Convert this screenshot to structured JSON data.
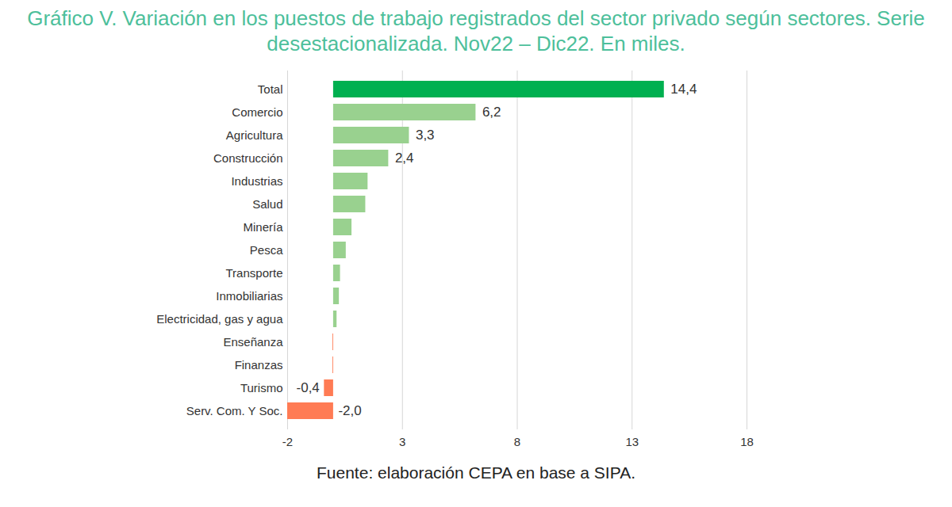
{
  "chart_data": {
    "type": "bar",
    "orientation": "horizontal",
    "title": "Gráfico V. Variación en los puestos de trabajo registrados del sector privado según sectores. Serie desestacionalizada. Nov22 – Dic22. En miles.",
    "caption": "Fuente: elaboración CEPA en base a SIPA.",
    "categories": [
      "Total",
      "Comercio",
      "Agricultura",
      "Construcción",
      "Industrias",
      "Salud",
      "Minería",
      "Pesca",
      "Transporte",
      "Inmobiliarias",
      "Electricidad, gas y agua",
      "Enseñanza",
      "Finanzas",
      "Turismo",
      "Serv. Com. Y Soc."
    ],
    "values": [
      14.4,
      6.2,
      3.3,
      2.4,
      1.5,
      1.4,
      0.8,
      0.55,
      0.3,
      0.25,
      0.15,
      -0.03,
      -0.03,
      -0.4,
      -2.0
    ],
    "value_labels": [
      "14,4",
      "6,2",
      "3,3",
      "2,4",
      null,
      null,
      null,
      null,
      null,
      null,
      null,
      null,
      null,
      "-0,4",
      "-2,0"
    ],
    "colors": [
      "#00b050",
      "#99d18f",
      "#99d18f",
      "#99d18f",
      "#99d18f",
      "#99d18f",
      "#99d18f",
      "#99d18f",
      "#99d18f",
      "#99d18f",
      "#99d18f",
      "#ff7b54",
      "#ff7b54",
      "#ff7b54",
      "#ff7b54"
    ],
    "xlim": [
      -2,
      18
    ],
    "xticks": [
      -2,
      3,
      8,
      13,
      18
    ],
    "grid": true,
    "data_labels": true
  }
}
